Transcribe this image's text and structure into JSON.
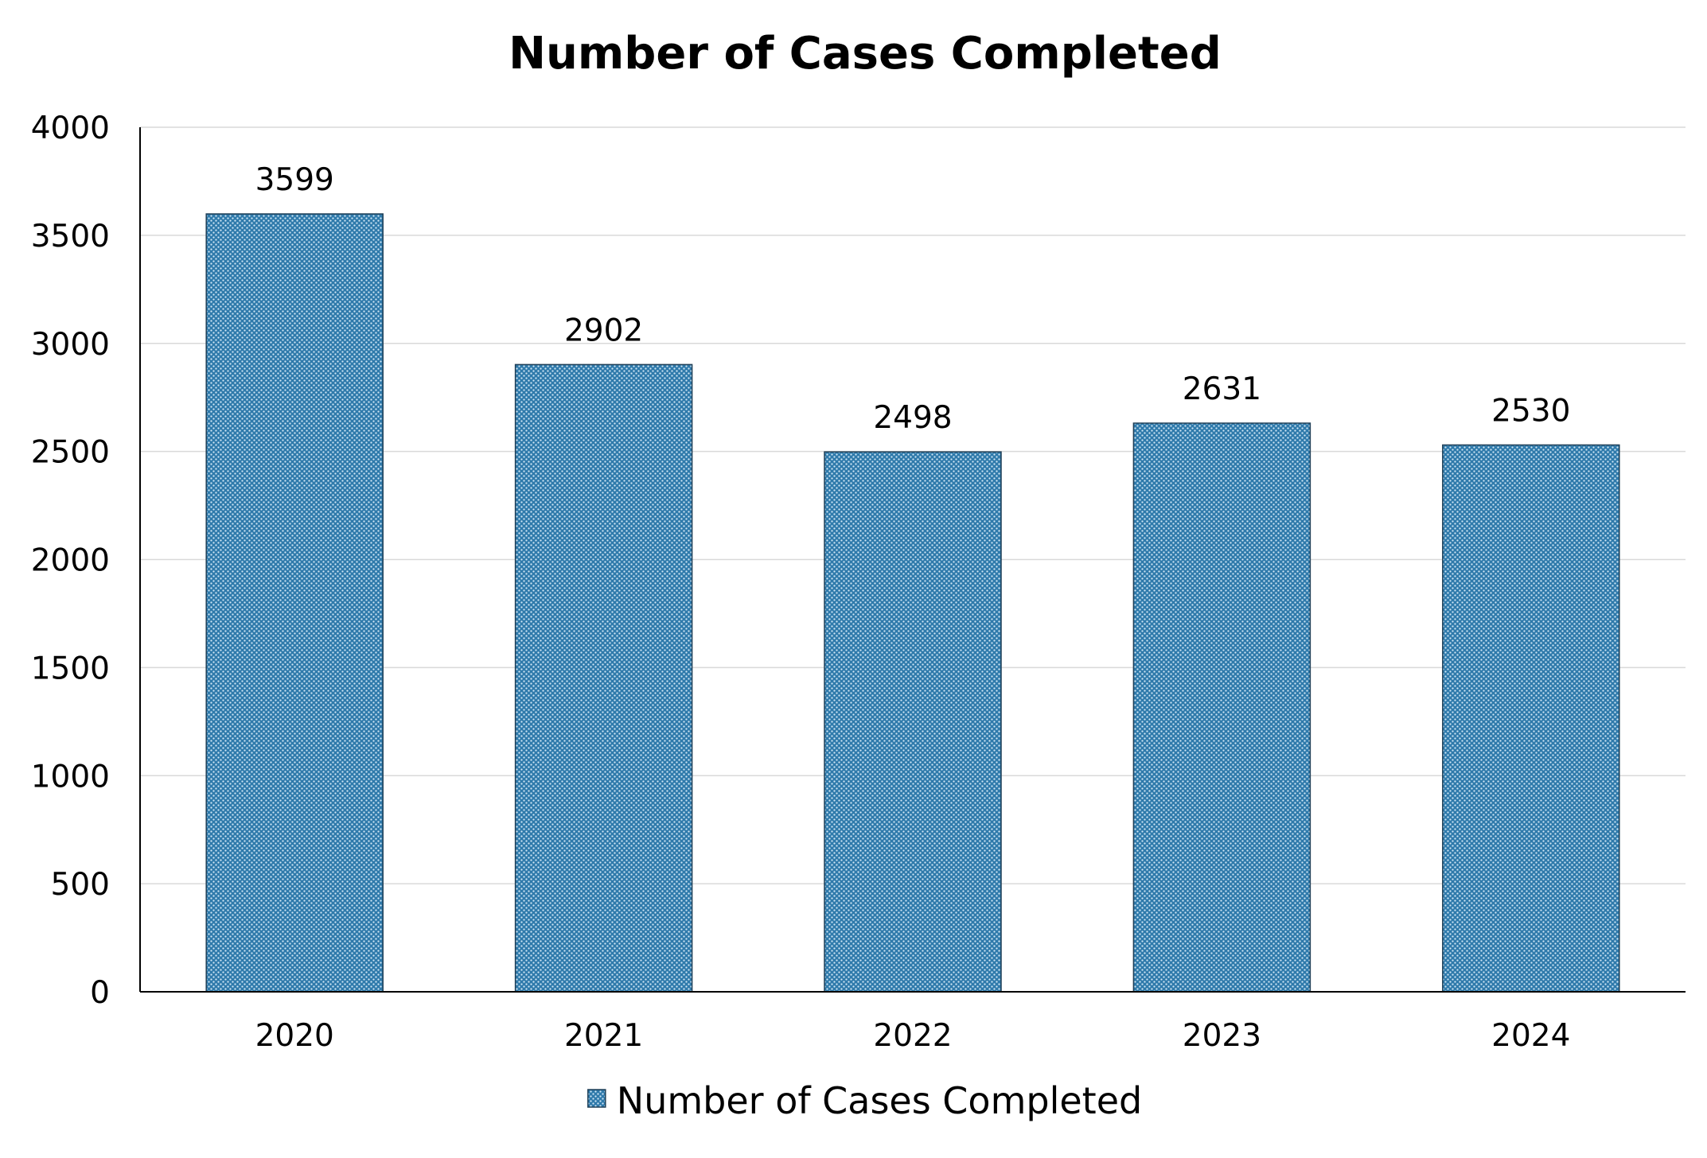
{
  "chart_data": {
    "type": "bar",
    "title": "Number of Cases Completed",
    "xlabel": "",
    "ylabel": "",
    "categories": [
      "2020",
      "2021",
      "2022",
      "2023",
      "2024"
    ],
    "series": [
      {
        "name": "Number of Cases Completed",
        "values": [
          3599,
          2902,
          2498,
          2631,
          2530
        ],
        "color": "#3a87b6",
        "pattern": "dotted"
      }
    ],
    "ylim": [
      0,
      4000
    ],
    "yticks": [
      "0",
      "500",
      "1000",
      "1500",
      "2000",
      "2500",
      "3000",
      "3500",
      "4000"
    ],
    "data_labels": [
      "3599",
      "2902",
      "2498",
      "2631",
      "2530"
    ],
    "grid": true,
    "legend": {
      "position": "bottom",
      "entries": [
        "Number of Cases Completed"
      ]
    }
  }
}
